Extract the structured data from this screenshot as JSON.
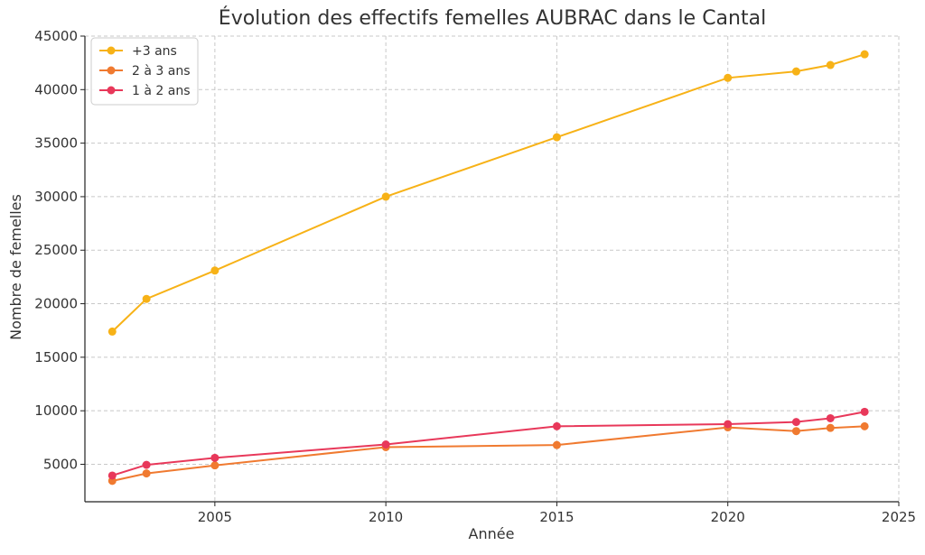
{
  "chart_data": {
    "type": "line",
    "title": "Évolution des effectifs femelles AUBRAC dans le Cantal",
    "xlabel": "Année",
    "ylabel": "Nombre de femelles",
    "xlim": [
      2001.2,
      2025.0
    ],
    "ylim": [
      1500,
      45000
    ],
    "xticks": [
      2005,
      2010,
      2015,
      2020,
      2025
    ],
    "yticks": [
      5000,
      10000,
      15000,
      20000,
      25000,
      30000,
      35000,
      40000,
      45000
    ],
    "grid": true,
    "legend_position": "top-left",
    "x": [
      2002,
      2003,
      2005,
      2010,
      2015,
      2020,
      2022,
      2023,
      2024
    ],
    "series": [
      {
        "name": "+3 ans",
        "color": "#f7b217",
        "values": [
          17400,
          20450,
          23100,
          30000,
          35550,
          41100,
          41700,
          42300,
          43300
        ]
      },
      {
        "name": "2 à 3 ans",
        "color": "#f07a30",
        "values": [
          3450,
          4150,
          4900,
          6600,
          6800,
          8450,
          8100,
          8400,
          8550
        ]
      },
      {
        "name": "1 à 2 ans",
        "color": "#e8385a",
        "values": [
          3950,
          4950,
          5600,
          6850,
          8550,
          8750,
          8950,
          9300,
          9900
        ]
      }
    ]
  }
}
